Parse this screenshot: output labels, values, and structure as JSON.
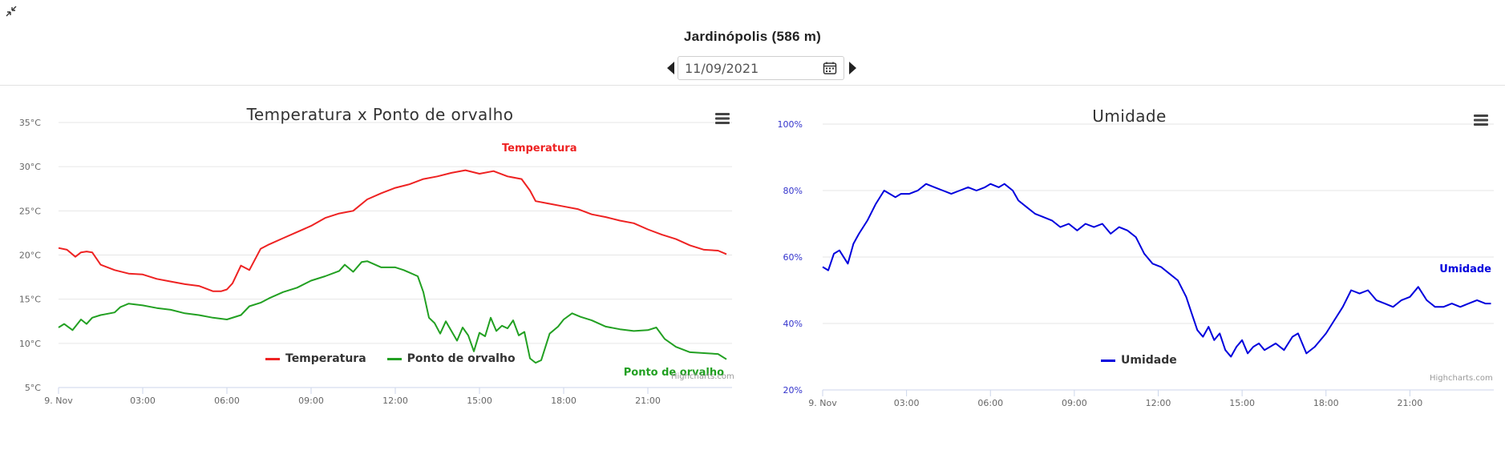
{
  "header": {
    "station_title": "Jardinópolis (586 m)",
    "date_value": "11/09/2021",
    "prev_icon": "triangle-left-icon",
    "next_icon": "triangle-right-icon",
    "calendar_icon": "calendar-icon",
    "collapse_icon": "compress-arrows-icon"
  },
  "chart_data": [
    {
      "type": "line",
      "title": "Temperatura x Ponto de orvalho",
      "x_unit": "hour of day",
      "x_ticks": [
        0,
        3,
        6,
        9,
        12,
        15,
        18,
        21
      ],
      "x_tick_labels": [
        "9. Nov",
        "03:00",
        "06:00",
        "09:00",
        "12:00",
        "15:00",
        "18:00",
        "21:00"
      ],
      "xlim": [
        0,
        24
      ],
      "ylim": [
        5,
        35
      ],
      "y_ticks": [
        5,
        10,
        15,
        20,
        25,
        30,
        35
      ],
      "y_tick_labels": [
        "5°C",
        "10°C",
        "15°C",
        "20°C",
        "25°C",
        "30°C",
        "35°C"
      ],
      "grid": true,
      "legend_position": "bottom-center",
      "series": [
        {
          "name": "Temperatura",
          "color": "#ee2222",
          "x": [
            0,
            0.3,
            0.6,
            0.8,
            1.0,
            1.2,
            1.5,
            2.0,
            2.5,
            3.0,
            3.5,
            4.0,
            4.5,
            5.0,
            5.5,
            5.8,
            6.0,
            6.2,
            6.5,
            6.8,
            7.2,
            7.5,
            8.0,
            8.5,
            9.0,
            9.5,
            10.0,
            10.5,
            11.0,
            11.5,
            12.0,
            12.5,
            13.0,
            13.5,
            14.0,
            14.5,
            15.0,
            15.5,
            16.0,
            16.5,
            16.8,
            17.0,
            17.5,
            18.0,
            18.5,
            19.0,
            19.5,
            20.0,
            20.5,
            21.0,
            21.5,
            22.0,
            22.5,
            23.0,
            23.5,
            23.8
          ],
          "values": [
            20.8,
            20.6,
            19.8,
            20.3,
            20.4,
            20.3,
            18.9,
            18.3,
            17.9,
            17.8,
            17.3,
            17.0,
            16.7,
            16.5,
            15.9,
            15.9,
            16.1,
            16.8,
            18.8,
            18.3,
            20.7,
            21.2,
            21.9,
            22.6,
            23.3,
            24.2,
            24.7,
            25.0,
            26.3,
            27.0,
            27.6,
            28.0,
            28.6,
            28.9,
            29.3,
            29.6,
            29.2,
            29.5,
            28.9,
            28.6,
            27.3,
            26.1,
            25.8,
            25.5,
            25.2,
            24.6,
            24.3,
            23.9,
            23.6,
            22.9,
            22.3,
            21.8,
            21.1,
            20.6,
            20.5,
            20.1
          ]
        },
        {
          "name": "Ponto de orvalho",
          "color": "#22a022",
          "x": [
            0,
            0.2,
            0.5,
            0.8,
            1.0,
            1.2,
            1.5,
            2.0,
            2.2,
            2.5,
            3.0,
            3.5,
            4.0,
            4.5,
            5.0,
            5.5,
            6.0,
            6.5,
            6.8,
            7.2,
            7.5,
            8.0,
            8.5,
            9.0,
            9.5,
            10.0,
            10.2,
            10.5,
            10.8,
            11.0,
            11.5,
            12.0,
            12.3,
            12.8,
            13.0,
            13.2,
            13.4,
            13.6,
            13.8,
            14.0,
            14.2,
            14.4,
            14.6,
            14.8,
            15.0,
            15.2,
            15.4,
            15.6,
            15.8,
            16.0,
            16.2,
            16.4,
            16.6,
            16.8,
            17.0,
            17.2,
            17.5,
            17.8,
            18.0,
            18.3,
            18.6,
            19.0,
            19.5,
            20.0,
            20.5,
            21.0,
            21.3,
            21.6,
            22.0,
            22.5,
            23.0,
            23.5,
            23.8
          ],
          "values": [
            11.8,
            12.2,
            11.5,
            12.7,
            12.2,
            12.9,
            13.2,
            13.5,
            14.1,
            14.5,
            14.3,
            14.0,
            13.8,
            13.4,
            13.2,
            12.9,
            12.7,
            13.2,
            14.2,
            14.6,
            15.1,
            15.8,
            16.3,
            17.1,
            17.6,
            18.2,
            18.9,
            18.1,
            19.2,
            19.3,
            18.6,
            18.6,
            18.3,
            17.6,
            15.8,
            12.9,
            12.3,
            11.1,
            12.5,
            11.4,
            10.3,
            11.8,
            10.9,
            9.1,
            11.2,
            10.8,
            12.9,
            11.4,
            12.0,
            11.7,
            12.6,
            10.9,
            11.3,
            8.3,
            7.8,
            8.1,
            11.1,
            11.9,
            12.7,
            13.4,
            13.0,
            12.6,
            11.9,
            11.6,
            11.4,
            11.5,
            11.8,
            10.5,
            9.6,
            9.0,
            8.9,
            8.8,
            8.2
          ]
        }
      ],
      "annotations": [
        {
          "text": "Temperatura",
          "series": "Temperatura"
        },
        {
          "text": "Ponto de orvalho",
          "series": "Ponto de orvalho"
        }
      ]
    },
    {
      "type": "line",
      "title": "Umidade",
      "x_unit": "hour of day",
      "x_ticks": [
        0,
        3,
        6,
        9,
        12,
        15,
        18,
        21
      ],
      "x_tick_labels": [
        "9. Nov",
        "03:00",
        "06:00",
        "09:00",
        "12:00",
        "15:00",
        "18:00",
        "21:00"
      ],
      "xlim": [
        0,
        24
      ],
      "ylim": [
        20,
        100
      ],
      "y_ticks": [
        20,
        40,
        60,
        80,
        100
      ],
      "y_tick_labels": [
        "20%",
        "40%",
        "60%",
        "80%",
        "100%"
      ],
      "grid": true,
      "legend_position": "bottom-center",
      "series": [
        {
          "name": "Umidade",
          "color": "#0000dd",
          "x": [
            0,
            0.2,
            0.4,
            0.6,
            0.9,
            1.1,
            1.3,
            1.6,
            1.9,
            2.2,
            2.4,
            2.6,
            2.8,
            3.1,
            3.4,
            3.7,
            4.0,
            4.3,
            4.6,
            4.9,
            5.2,
            5.5,
            5.8,
            6.0,
            6.3,
            6.5,
            6.8,
            7.0,
            7.3,
            7.6,
            7.9,
            8.2,
            8.5,
            8.8,
            9.1,
            9.4,
            9.7,
            10.0,
            10.3,
            10.6,
            10.9,
            11.2,
            11.5,
            11.8,
            12.1,
            12.4,
            12.7,
            13.0,
            13.2,
            13.4,
            13.6,
            13.8,
            14.0,
            14.2,
            14.4,
            14.6,
            14.8,
            15.0,
            15.2,
            15.4,
            15.6,
            15.8,
            16.0,
            16.2,
            16.5,
            16.8,
            17.0,
            17.3,
            17.6,
            18.0,
            18.3,
            18.6,
            18.9,
            19.2,
            19.5,
            19.8,
            20.1,
            20.4,
            20.7,
            21.0,
            21.3,
            21.6,
            21.9,
            22.2,
            22.5,
            22.8,
            23.1,
            23.4,
            23.7,
            23.9
          ],
          "values": [
            57,
            56,
            61,
            62,
            58,
            64,
            67,
            71,
            76,
            80,
            79,
            78,
            79,
            79,
            80,
            82,
            81,
            80,
            79,
            80,
            81,
            80,
            81,
            82,
            81,
            82,
            80,
            77,
            75,
            73,
            72,
            71,
            69,
            70,
            68,
            70,
            69,
            70,
            67,
            69,
            68,
            66,
            61,
            58,
            57,
            55,
            53,
            48,
            43,
            38,
            36,
            39,
            35,
            37,
            32,
            30,
            33,
            35,
            31,
            33,
            34,
            32,
            33,
            34,
            32,
            36,
            37,
            31,
            33,
            37,
            41,
            45,
            50,
            49,
            50,
            47,
            46,
            45,
            47,
            48,
            51,
            47,
            45,
            45,
            46,
            45,
            46,
            47,
            46,
            46
          ]
        }
      ],
      "annotations": [
        {
          "text": "Umidade",
          "series": "Umidade"
        }
      ]
    }
  ],
  "left_chart": {
    "menu_icon": "hamburger-menu-icon",
    "legend": [
      {
        "label": "Temperatura",
        "color": "#ee2222"
      },
      {
        "label": "Ponto de orvalho",
        "color": "#22a022"
      }
    ],
    "credits": "Highcharts.com"
  },
  "right_chart": {
    "menu_icon": "hamburger-menu-icon",
    "legend": [
      {
        "label": "Umidade",
        "color": "#0000dd"
      }
    ],
    "credits": "Highcharts.com"
  }
}
